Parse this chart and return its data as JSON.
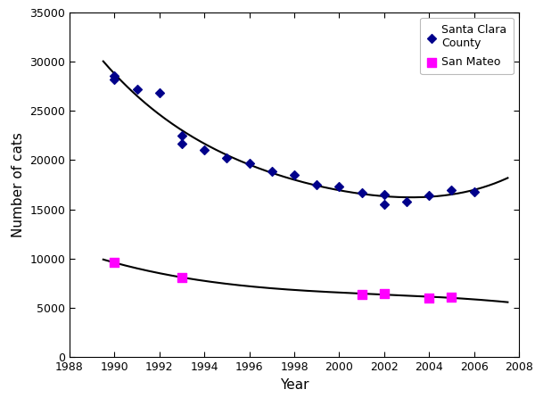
{
  "santa_clara_years": [
    1990,
    1990,
    1991,
    1992,
    1993,
    1993,
    1994,
    1995,
    1996,
    1997,
    1998,
    1999,
    2000,
    2001,
    2002,
    2002,
    2003,
    2004,
    2005,
    2006
  ],
  "santa_clara_values": [
    28500,
    28200,
    27200,
    26800,
    22500,
    21700,
    21000,
    20200,
    19700,
    18900,
    18500,
    17500,
    17300,
    16700,
    16500,
    15500,
    15800,
    16400,
    17000,
    16800
  ],
  "san_mateo_years": [
    1990,
    1993,
    2001,
    2002,
    2004,
    2005
  ],
  "san_mateo_values": [
    9600,
    8100,
    6400,
    6500,
    6000,
    6100
  ],
  "sc_color": "#00008B",
  "sm_color": "#FF00FF",
  "curve_color": "#000000",
  "xlabel": "Year",
  "ylabel": "Number of cats",
  "xlim": [
    1988,
    2008
  ],
  "ylim": [
    0,
    35000
  ],
  "xticks": [
    1988,
    1990,
    1992,
    1994,
    1996,
    1998,
    2000,
    2002,
    2004,
    2006,
    2008
  ],
  "yticks": [
    0,
    5000,
    10000,
    15000,
    20000,
    25000,
    30000,
    35000
  ],
  "legend_santa_clara": "Santa Clara\nCounty",
  "legend_san_mateo": "San Mateo"
}
